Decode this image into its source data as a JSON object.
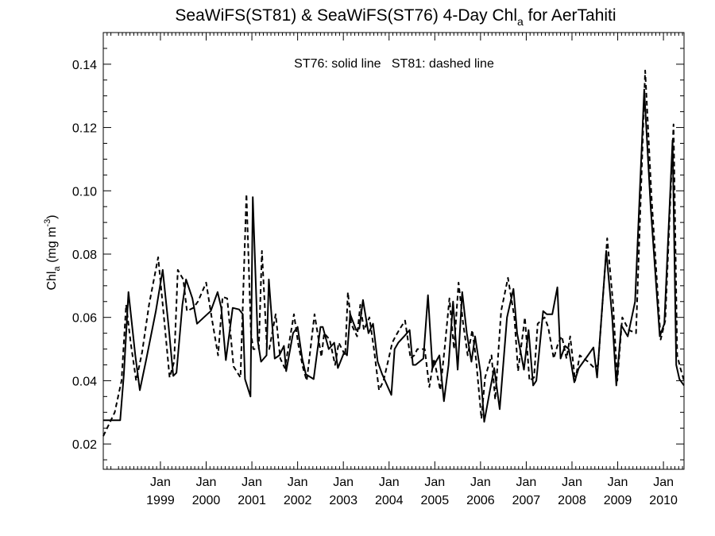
{
  "chart_data": {
    "type": "line",
    "title": {
      "prefix": "SeaWiFS(ST81) & SeaWiFS(ST76) 4-Day Chl",
      "subscript": "a",
      "suffix": " for AerTahiti"
    },
    "annotation": "ST76: solid line   ST81: dashed line",
    "ylabel": {
      "prefix": "Chl",
      "subscript": "a",
      "middle": " (mg m",
      "superscript": "-3",
      "suffix": ")"
    },
    "xlabel": "",
    "xlim": [
      1997.75,
      2010.45
    ],
    "ylim": [
      0.012,
      0.15
    ],
    "yticks": [
      "0.02",
      "0.04",
      "0.06",
      "0.08",
      "0.10",
      "0.12",
      "0.14"
    ],
    "xticks": [
      {
        "month": "Jan",
        "year": "1999"
      },
      {
        "month": "Jan",
        "year": "2000"
      },
      {
        "month": "Jan",
        "year": "2001"
      },
      {
        "month": "Jan",
        "year": "2002"
      },
      {
        "month": "Jan",
        "year": "2003"
      },
      {
        "month": "Jan",
        "year": "2004"
      },
      {
        "month": "Jan",
        "year": "2005"
      },
      {
        "month": "Jan",
        "year": "2006"
      },
      {
        "month": "Jan",
        "year": "2007"
      },
      {
        "month": "Jan",
        "year": "2008"
      },
      {
        "month": "Jan",
        "year": "2009"
      },
      {
        "month": "Jan",
        "year": "2010"
      }
    ],
    "series": [
      {
        "key": "ST76",
        "style": "solid",
        "x": [
          1997.75,
          1998.03,
          1998.12,
          1998.2,
          1998.3,
          1998.45,
          1998.55,
          1998.68,
          1998.9,
          1999.05,
          1999.18,
          1999.28,
          1999.35,
          1999.48,
          1999.56,
          1999.7,
          1999.8,
          1999.95,
          2000.1,
          2000.25,
          2000.33,
          2000.43,
          2000.58,
          2000.72,
          2000.8,
          2000.85,
          2000.97,
          2001.02,
          2001.13,
          2001.2,
          2001.32,
          2001.37,
          2001.5,
          2001.6,
          2001.7,
          2001.75,
          2001.9,
          2002.0,
          2002.1,
          2002.18,
          2002.35,
          2002.5,
          2002.55,
          2002.68,
          2002.8,
          2002.88,
          2003.02,
          2003.08,
          2003.15,
          2003.28,
          2003.35,
          2003.43,
          2003.55,
          2003.65,
          2003.75,
          2003.85,
          2004.05,
          2004.12,
          2004.2,
          2004.33,
          2004.45,
          2004.52,
          2004.58,
          2004.75,
          2004.85,
          2004.95,
          2005.1,
          2005.2,
          2005.3,
          2005.4,
          2005.5,
          2005.6,
          2005.7,
          2005.8,
          2005.88,
          2006.0,
          2006.08,
          2006.22,
          2006.3,
          2006.42,
          2006.58,
          2006.72,
          2006.8,
          2006.95,
          2007.05,
          2007.15,
          2007.22,
          2007.37,
          2007.45,
          2007.57,
          2007.68,
          2007.75,
          2007.85,
          2007.93,
          2008.05,
          2008.15,
          2008.35,
          2008.47,
          2008.55,
          2008.75,
          2008.88,
          2008.97,
          2009.08,
          2009.22,
          2009.38,
          2009.58,
          2009.72,
          2009.92,
          2010.02,
          2010.2,
          2010.28,
          2010.35,
          2010.45
        ],
        "y": [
          0.0275,
          0.0275,
          0.0275,
          0.042,
          0.068,
          0.048,
          0.037,
          0.046,
          0.062,
          0.075,
          0.057,
          0.0415,
          0.0425,
          0.064,
          0.072,
          0.066,
          0.058,
          0.06,
          0.062,
          0.068,
          0.063,
          0.0465,
          0.063,
          0.0625,
          0.061,
          0.0405,
          0.035,
          0.098,
          0.0525,
          0.046,
          0.048,
          0.072,
          0.047,
          0.048,
          0.051,
          0.043,
          0.055,
          0.057,
          0.047,
          0.042,
          0.0405,
          0.057,
          0.057,
          0.05,
          0.052,
          0.044,
          0.049,
          0.048,
          0.061,
          0.056,
          0.0565,
          0.0655,
          0.055,
          0.058,
          0.046,
          0.042,
          0.0355,
          0.05,
          0.052,
          0.054,
          0.056,
          0.045,
          0.045,
          0.047,
          0.067,
          0.044,
          0.048,
          0.0335,
          0.045,
          0.065,
          0.0435,
          0.068,
          0.055,
          0.046,
          0.054,
          0.0425,
          0.027,
          0.038,
          0.044,
          0.031,
          0.06,
          0.069,
          0.055,
          0.0435,
          0.056,
          0.0385,
          0.04,
          0.062,
          0.061,
          0.061,
          0.0695,
          0.047,
          0.051,
          0.05,
          0.0395,
          0.044,
          0.048,
          0.0505,
          0.041,
          0.081,
          0.06,
          0.0385,
          0.0575,
          0.054,
          0.065,
          0.132,
          0.095,
          0.054,
          0.058,
          0.116,
          0.045,
          0.0405,
          0.0385
        ]
      },
      {
        "key": "ST81",
        "style": "dashed",
        "x": [
          1997.75,
          1998.0,
          1998.15,
          1998.25,
          1998.35,
          1998.47,
          1998.6,
          1998.75,
          1998.95,
          1999.07,
          1999.2,
          1999.3,
          1999.38,
          1999.5,
          1999.58,
          1999.72,
          1999.82,
          2000.0,
          2000.12,
          2000.26,
          2000.36,
          2000.46,
          2000.6,
          2000.75,
          2000.88,
          2000.98,
          2001.03,
          2001.15,
          2001.22,
          2001.33,
          2001.38,
          2001.52,
          2001.62,
          2001.72,
          2001.78,
          2001.92,
          2002.02,
          2002.12,
          2002.2,
          2002.37,
          2002.52,
          2002.58,
          2002.7,
          2002.82,
          2002.9,
          2003.04,
          2003.1,
          2003.17,
          2003.3,
          2003.37,
          2003.45,
          2003.57,
          2003.67,
          2003.78,
          2003.88,
          2004.07,
          2004.14,
          2004.22,
          2004.35,
          2004.47,
          2004.55,
          2004.62,
          2004.78,
          2004.88,
          2004.98,
          2005.12,
          2005.22,
          2005.32,
          2005.42,
          2005.52,
          2005.62,
          2005.72,
          2005.82,
          2005.9,
          2006.02,
          2006.1,
          2006.24,
          2006.32,
          2006.45,
          2006.6,
          2006.74,
          2006.82,
          2006.97,
          2007.07,
          2007.17,
          2007.25,
          2007.4,
          2007.48,
          2007.6,
          2007.7,
          2007.78,
          2007.88,
          2007.96,
          2008.07,
          2008.17,
          2008.35,
          2008.49,
          2008.57,
          2008.77,
          2008.9,
          2008.99,
          2009.1,
          2009.24,
          2009.4,
          2009.6,
          2009.74,
          2009.94,
          2010.04,
          2010.22,
          2010.3,
          2010.37,
          2010.45
        ],
        "y": [
          0.0225,
          0.03,
          0.04,
          0.064,
          0.052,
          0.04,
          0.049,
          0.064,
          0.079,
          0.061,
          0.041,
          0.046,
          0.075,
          0.072,
          0.062,
          0.063,
          0.065,
          0.071,
          0.06,
          0.048,
          0.0665,
          0.066,
          0.0445,
          0.041,
          0.099,
          0.055,
          0.05,
          0.05,
          0.081,
          0.05,
          0.05,
          0.061,
          0.047,
          0.044,
          0.049,
          0.061,
          0.051,
          0.044,
          0.04,
          0.061,
          0.0475,
          0.055,
          0.053,
          0.045,
          0.052,
          0.048,
          0.068,
          0.058,
          0.054,
          0.064,
          0.056,
          0.06,
          0.05,
          0.037,
          0.04,
          0.052,
          0.054,
          0.056,
          0.059,
          0.047,
          0.048,
          0.05,
          0.05,
          0.038,
          0.047,
          0.037,
          0.051,
          0.066,
          0.05,
          0.071,
          0.058,
          0.048,
          0.056,
          0.047,
          0.028,
          0.041,
          0.048,
          0.034,
          0.062,
          0.0725,
          0.06,
          0.043,
          0.06,
          0.04,
          0.041,
          0.058,
          0.06,
          0.057,
          0.047,
          0.052,
          0.054,
          0.047,
          0.054,
          0.04,
          0.048,
          0.046,
          0.044,
          0.045,
          0.085,
          0.064,
          0.04,
          0.06,
          0.056,
          0.055,
          0.138,
          0.098,
          0.053,
          0.059,
          0.121,
          0.048,
          0.044,
          0.04
        ]
      }
    ],
    "grid": false,
    "legend": "none"
  }
}
